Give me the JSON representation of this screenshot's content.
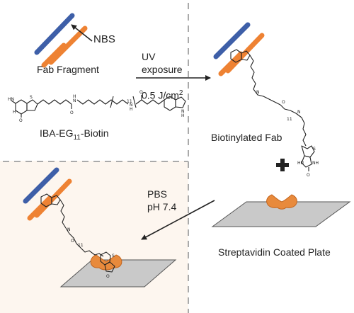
{
  "labels": {
    "nbs": "NBS",
    "fab_fragment": "Fab Fragment",
    "uv_line1": "UV",
    "uv_line2": "exposure",
    "dose_value": "0.5 J/cm",
    "dose_sup": "2",
    "iba_prefix": "IBA-EG",
    "iba_sub": "11",
    "iba_suffix": "-Biotin",
    "biotinylated_fab": "Biotinylated Fab",
    "plus_sign": "+",
    "pbs": "PBS",
    "ph": "pH 7.4",
    "plate": "Streptavidin Coated Plate",
    "chain_repeat": "11"
  },
  "colors": {
    "heavy_chain": "#3E5FA8",
    "light_chain": "#EE8233",
    "streptavidin": "#E88A3C",
    "plate_fill": "#C9C9C9",
    "bottom_left_panel": "#FDF6EF",
    "dashed_divider": "#AAAAAA",
    "line": "#222222"
  }
}
